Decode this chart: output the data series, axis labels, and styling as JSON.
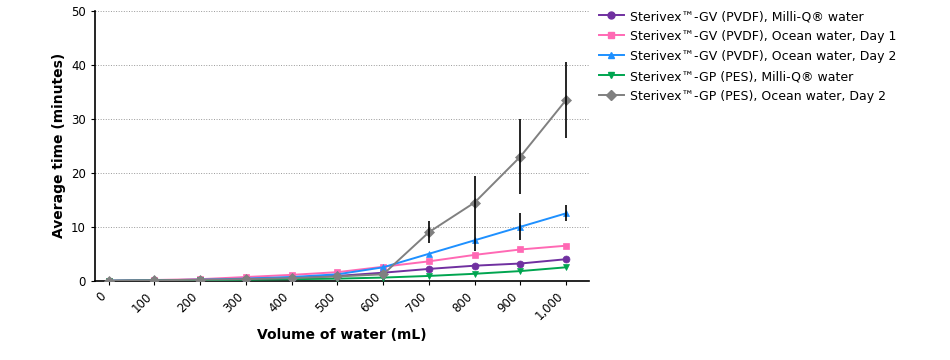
{
  "x_values": [
    0,
    100,
    200,
    300,
    400,
    500,
    600,
    700,
    800,
    900,
    1000
  ],
  "series": [
    {
      "label": "Sterivex™-GV (PVDF), Milli-Q$^{®}$ water",
      "color": "#7030A0",
      "marker": "o",
      "markersize": 5,
      "y": [
        0,
        0.1,
        0.2,
        0.4,
        0.6,
        0.9,
        1.5,
        2.2,
        2.8,
        3.2,
        4.0
      ],
      "yerr": [
        null,
        null,
        null,
        null,
        null,
        null,
        null,
        null,
        null,
        null,
        null
      ]
    },
    {
      "label": "Sterivex™-GV (PVDF), Ocean water, Day 1",
      "color": "#FF69B4",
      "marker": "s",
      "markersize": 5,
      "y": [
        0,
        0.15,
        0.3,
        0.7,
        1.1,
        1.6,
        2.6,
        3.6,
        4.8,
        5.8,
        6.5
      ],
      "yerr": [
        null,
        null,
        null,
        null,
        null,
        null,
        null,
        null,
        null,
        null,
        null
      ]
    },
    {
      "label": "Sterivex™-GV (PVDF), Ocean water, Day 2",
      "color": "#1E90FF",
      "marker": "^",
      "markersize": 5,
      "y": [
        0,
        0.1,
        0.2,
        0.4,
        0.7,
        1.2,
        2.5,
        5.0,
        7.5,
        10.0,
        12.5
      ],
      "yerr": [
        null,
        null,
        null,
        null,
        null,
        null,
        null,
        null,
        2.0,
        2.5,
        1.5
      ]
    },
    {
      "label": "Sterivex™-GP (PES), Milli-Q$^{®}$ water",
      "color": "#00A550",
      "marker": "v",
      "markersize": 5,
      "y": [
        0,
        0.05,
        0.1,
        0.2,
        0.3,
        0.4,
        0.6,
        0.9,
        1.3,
        1.8,
        2.5
      ],
      "yerr": [
        null,
        null,
        null,
        null,
        null,
        null,
        null,
        null,
        null,
        null,
        null
      ]
    },
    {
      "label": "Sterivex™-GP (PES), Ocean water, Day 2",
      "color": "#808080",
      "marker": "D",
      "markersize": 5,
      "y": [
        0,
        0.1,
        0.2,
        0.3,
        0.5,
        0.8,
        1.2,
        9.0,
        14.5,
        23.0,
        33.5
      ],
      "yerr": [
        null,
        null,
        null,
        null,
        null,
        null,
        null,
        2.0,
        5.0,
        7.0,
        7.0
      ]
    }
  ],
  "xlabel": "Volume of water (mL)",
  "ylabel": "Average time (minutes)",
  "xlim": [
    -30,
    1050
  ],
  "ylim": [
    0,
    50
  ],
  "yticks": [
    0,
    10,
    20,
    30,
    40,
    50
  ],
  "x_ticks": [
    0,
    100,
    200,
    300,
    400,
    500,
    600,
    700,
    800,
    900,
    1000
  ],
  "xtick_labels": [
    "0",
    "100",
    "200",
    "300",
    "400",
    "500",
    "600",
    "700",
    "800",
    "900",
    "1,000"
  ],
  "legend_labels": [
    "Sterivex™-GV (PVDF), Milli-Q® water",
    "Sterivex™-GV (PVDF), Ocean water, Day 1",
    "Sterivex™-GV (PVDF), Ocean water, Day 2",
    "Sterivex™-GP (PES), Milli-Q® water",
    "Sterivex™-GP (PES), Ocean water, Day 2"
  ]
}
